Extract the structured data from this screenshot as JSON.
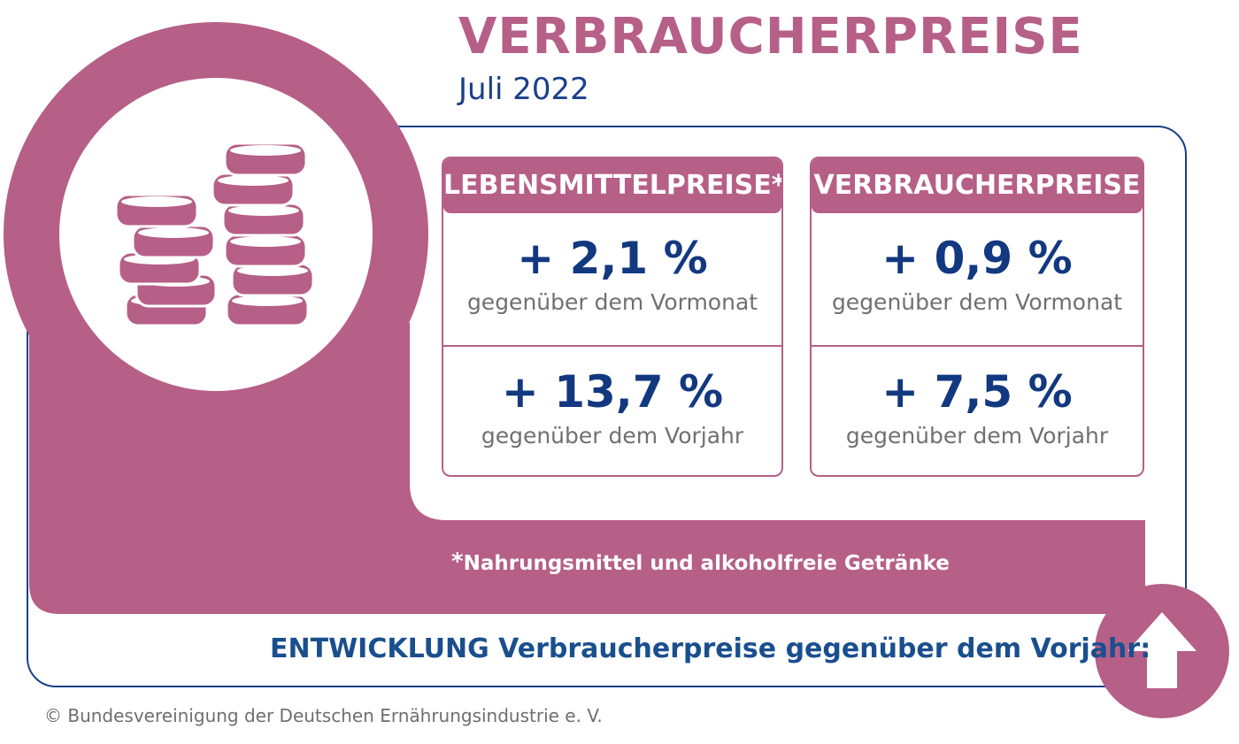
{
  "title": "VERBRAUCHERPREISE",
  "subtitle": "Juli 2022",
  "cards": [
    {
      "header": "LEBENSMITTELPREISE",
      "header_mark": "*",
      "monthly_value": "+ 2,1 %",
      "monthly_label": "gegenüber dem Vormonat",
      "yearly_value": "+ 13,7 %",
      "yearly_label": "gegenüber dem Vorjahr"
    },
    {
      "header": "VERBRAUCHERPREISE",
      "monthly_value": "+ 0,9 %",
      "monthly_label": "gegenüber dem Vormonat",
      "yearly_value": "+ 7,5 %",
      "yearly_label": "gegenüber dem Vorjahr"
    }
  ],
  "footnote": {
    "mark": "*",
    "text": "Nahrungsmittel und alkoholfreie Getränke"
  },
  "bottom_text": "ENTWICKLUNG Verbraucherpreise gegenüber dem Vorjahr:",
  "copyright": "© Bundesvereinigung der Deutschen Ernährungsindustrie e. V.",
  "icons": {
    "coins": "coins-icon",
    "trend": "arrow-up-icon"
  },
  "colors": {
    "accent": "#b65f87",
    "navy": "#12387f",
    "blue_text": "#1a4f8e",
    "gray_text": "#707070"
  }
}
